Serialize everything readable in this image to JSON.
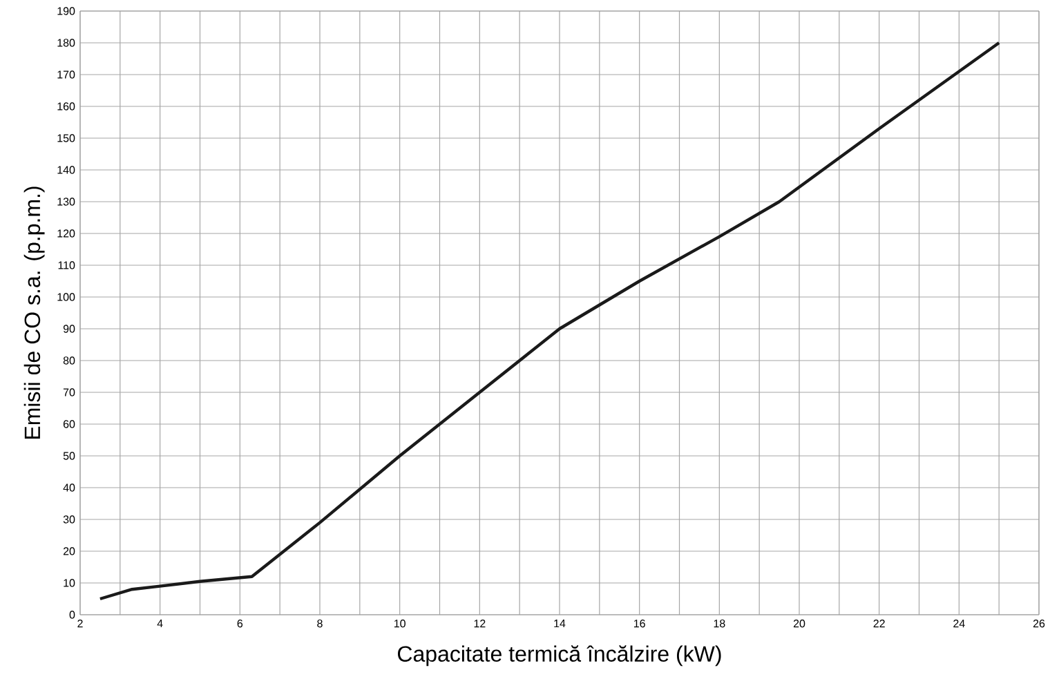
{
  "chart_data": {
    "type": "line",
    "xlabel": "Capacitate termică încălzire (kW)",
    "ylabel": "Emisii de CO s.a. (p.p.m.)",
    "x": [
      2.5,
      3.3,
      4,
      5,
      6.3,
      8,
      10,
      12,
      14,
      16,
      18,
      19.5,
      22,
      25
    ],
    "series": [
      {
        "color": "#1a1a1a",
        "values": [
          5,
          8,
          9,
          10.5,
          12,
          29,
          50,
          70,
          90,
          105,
          119,
          130,
          153,
          180
        ]
      }
    ],
    "xlim": [
      2,
      26
    ],
    "xticks": [
      2,
      {
        "value": 3,
        "label": null
      },
      4,
      {
        "value": 5,
        "label": null
      },
      6,
      {
        "value": 7,
        "label": null
      },
      8,
      {
        "value": 9,
        "label": null
      },
      10,
      {
        "value": 11,
        "label": null
      },
      12,
      {
        "value": 13,
        "label": null
      },
      14,
      {
        "value": 15,
        "label": null
      },
      16,
      {
        "value": 17,
        "label": null
      },
      18,
      {
        "value": 19,
        "label": null
      },
      20,
      {
        "value": 21,
        "label": null
      },
      22,
      {
        "value": 23,
        "label": null
      },
      24,
      {
        "value": 25,
        "label": null
      },
      26
    ],
    "ylim": [
      0,
      190
    ],
    "yticks": [
      0,
      10,
      20,
      30,
      40,
      50,
      60,
      70,
      80,
      90,
      100,
      110,
      120,
      130,
      140,
      150,
      160,
      170,
      180,
      190
    ],
    "grid": true,
    "marker": "none",
    "line_style": "solid"
  }
}
